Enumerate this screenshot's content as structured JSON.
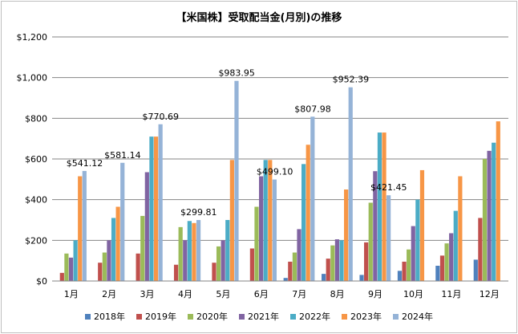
{
  "chart_data": {
    "type": "bar",
    "title": "【米国株】受取配当金(月別)の推移",
    "xlabel": "",
    "ylabel": "",
    "ylim": [
      0,
      1200
    ],
    "yticks": [
      "$0",
      "$200",
      "$400",
      "$600",
      "$800",
      "$1,000",
      "$1,200"
    ],
    "ytick_values": [
      0,
      200,
      400,
      600,
      800,
      1000,
      1200
    ],
    "gridlines": true,
    "legend_position": "bottom",
    "categories": [
      "1月",
      "2月",
      "3月",
      "4月",
      "5月",
      "6月",
      "7月",
      "8月",
      "9月",
      "10月",
      "11月",
      "12月"
    ],
    "series": [
      {
        "name": "2018年",
        "color": "#4f81bd",
        "values": [
          0,
          0,
          0,
          0,
          0,
          0,
          15,
          35,
          30,
          50,
          75,
          105
        ]
      },
      {
        "name": "2019年",
        "color": "#c0504d",
        "values": [
          40,
          90,
          135,
          80,
          90,
          160,
          95,
          110,
          190,
          95,
          125,
          310
        ]
      },
      {
        "name": "2020年",
        "color": "#9bbb59",
        "values": [
          135,
          140,
          320,
          265,
          170,
          365,
          140,
          175,
          385,
          155,
          185,
          600
        ]
      },
      {
        "name": "2021年",
        "color": "#8064a2",
        "values": [
          115,
          200,
          535,
          200,
          200,
          515,
          255,
          205,
          540,
          270,
          235,
          640
        ]
      },
      {
        "name": "2022年",
        "color": "#4bacc6",
        "values": [
          200,
          310,
          710,
          295,
          300,
          595,
          575,
          200,
          730,
          400,
          345,
          680
        ]
      },
      {
        "name": "2023年",
        "color": "#f79646",
        "values": [
          515,
          365,
          710,
          285,
          595,
          595,
          670,
          450,
          730,
          545,
          515,
          785
        ]
      },
      {
        "name": "2024年",
        "color": "#95b3d7",
        "values": [
          541.12,
          581.14,
          770.69,
          299.81,
          983.95,
          499.1,
          807.98,
          952.39,
          421.45,
          0,
          0,
          0
        ]
      }
    ],
    "data_labels": [
      {
        "text": "$541.12",
        "category_index": 0,
        "value": 541.12
      },
      {
        "text": "$581.14",
        "category_index": 1,
        "value": 581.14
      },
      {
        "text": "$770.69",
        "category_index": 2,
        "value": 770.69
      },
      {
        "text": "$299.81",
        "category_index": 3,
        "value": 299.81
      },
      {
        "text": "$983.95",
        "category_index": 4,
        "value": 983.95
      },
      {
        "text": "$499.10",
        "category_index": 5,
        "value": 499.1
      },
      {
        "text": "$807.98",
        "category_index": 6,
        "value": 807.98
      },
      {
        "text": "$952.39",
        "category_index": 7,
        "value": 952.39
      },
      {
        "text": "$421.45",
        "category_index": 8,
        "value": 421.45
      }
    ]
  }
}
